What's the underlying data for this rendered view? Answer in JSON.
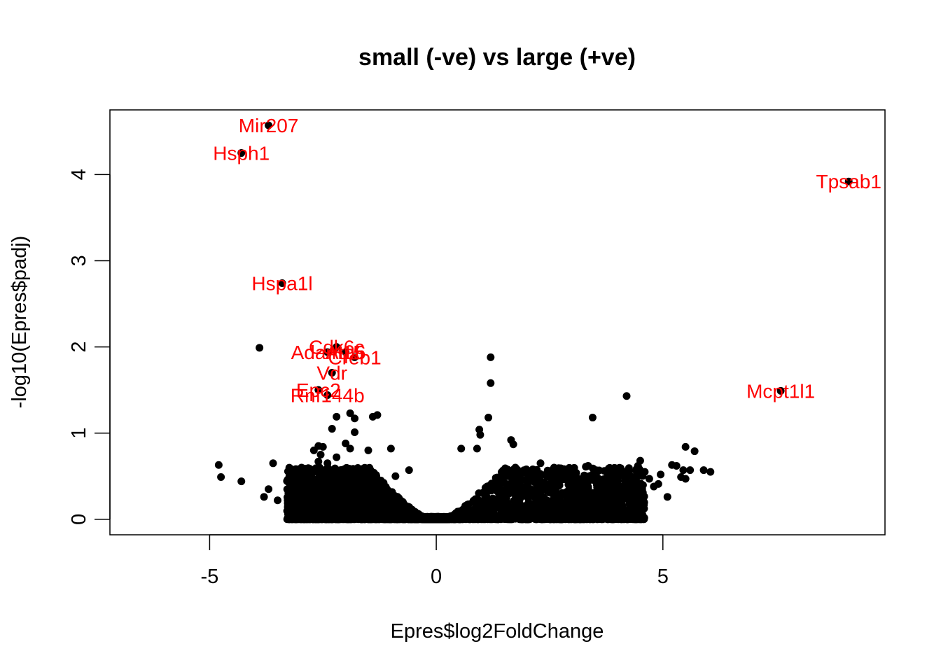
{
  "chart_data": {
    "type": "scatter",
    "title": "small (-ve) vs large (+ve)",
    "xlabel": "Epres$log2FoldChange",
    "ylabel": "-log10(Epres$padj)",
    "xlim": [
      -7.2,
      9.9
    ],
    "ylim": [
      -0.18,
      4.75
    ],
    "x_ticks": [
      -5,
      0,
      5
    ],
    "x_tick_labels": [
      "-5",
      "0",
      "5"
    ],
    "y_ticks": [
      0,
      1,
      2,
      3,
      4
    ],
    "y_tick_labels": [
      "0",
      "1",
      "2",
      "3",
      "4"
    ],
    "point_color": "#000000",
    "label_color": "#ff0000",
    "labeled_points": [
      {
        "label": "Mir207",
        "x": -3.7,
        "y": 4.57
      },
      {
        "label": "Hsph1",
        "x": -4.3,
        "y": 4.25
      },
      {
        "label": "Tpsab1",
        "x": 9.1,
        "y": 3.92
      },
      {
        "label": "Hspa1l",
        "x": -3.4,
        "y": 2.74
      },
      {
        "label": "Cdk6c",
        "x": -2.2,
        "y": 2.0
      },
      {
        "label": "Atp6",
        "x": -2.0,
        "y": 1.94
      },
      {
        "label": "Adam15",
        "x": -2.4,
        "y": 1.94
      },
      {
        "label": "Creb1",
        "x": -1.8,
        "y": 1.88
      },
      {
        "label": "Vdr",
        "x": -2.3,
        "y": 1.7
      },
      {
        "label": "Mcpt1l1",
        "x": 7.6,
        "y": 1.49
      },
      {
        "label": "Epc2",
        "x": -2.6,
        "y": 1.5
      },
      {
        "label": "Rnf144b",
        "x": -2.4,
        "y": 1.44
      }
    ],
    "other_points": [
      [
        -3.9,
        1.99
      ],
      [
        1.2,
        1.88
      ],
      [
        1.2,
        1.58
      ],
      [
        4.2,
        1.43
      ],
      [
        3.45,
        1.18
      ],
      [
        -1.3,
        1.21
      ],
      [
        -1.4,
        1.19
      ],
      [
        -1.9,
        1.23
      ],
      [
        -2.2,
        1.19
      ],
      [
        -1.8,
        1.17
      ],
      [
        1.15,
        1.18
      ],
      [
        -2.3,
        1.05
      ],
      [
        -1.8,
        1.01
      ],
      [
        0.95,
        1.04
      ],
      [
        0.97,
        0.98
      ],
      [
        -2.0,
        0.88
      ],
      [
        -1.9,
        0.82
      ],
      [
        -1.5,
        0.8
      ],
      [
        -1.0,
        0.82
      ],
      [
        -2.5,
        0.84
      ],
      [
        -2.6,
        0.85
      ],
      [
        -2.7,
        0.8
      ],
      [
        -2.55,
        0.75
      ],
      [
        0.55,
        0.82
      ],
      [
        0.9,
        0.82
      ],
      [
        1.65,
        0.92
      ],
      [
        1.7,
        0.87
      ],
      [
        5.5,
        0.84
      ],
      [
        5.7,
        0.79
      ],
      [
        -4.8,
        0.63
      ],
      [
        -4.75,
        0.49
      ],
      [
        -4.3,
        0.44
      ],
      [
        -3.6,
        0.65
      ],
      [
        -3.7,
        0.35
      ],
      [
        -3.8,
        0.26
      ],
      [
        -3.5,
        0.22
      ],
      [
        -2.2,
        0.72
      ],
      [
        -2.4,
        0.65
      ],
      [
        -2.6,
        0.67
      ],
      [
        2.3,
        0.65
      ],
      [
        2.6,
        0.6
      ],
      [
        3.3,
        0.61
      ],
      [
        3.35,
        0.62
      ],
      [
        5.2,
        0.63
      ],
      [
        5.3,
        0.62
      ],
      [
        5.45,
        0.57
      ],
      [
        5.6,
        0.57
      ],
      [
        5.9,
        0.57
      ],
      [
        6.05,
        0.55
      ],
      [
        5.4,
        0.49
      ],
      [
        5.5,
        0.47
      ],
      [
        4.9,
        0.41
      ],
      [
        4.95,
        0.52
      ],
      [
        5.1,
        0.26
      ],
      [
        4.5,
        0.68
      ],
      [
        4.45,
        0.62
      ],
      [
        4.6,
        0.55
      ],
      [
        4.7,
        0.47
      ],
      [
        4.8,
        0.38
      ],
      [
        4.4,
        0.45
      ],
      [
        -0.6,
        0.57
      ],
      [
        -0.9,
        0.5
      ],
      [
        1.9,
        0.46
      ],
      [
        2.1,
        0.47
      ],
      [
        3.0,
        0.33
      ],
      [
        3.8,
        0.38
      ]
    ]
  }
}
